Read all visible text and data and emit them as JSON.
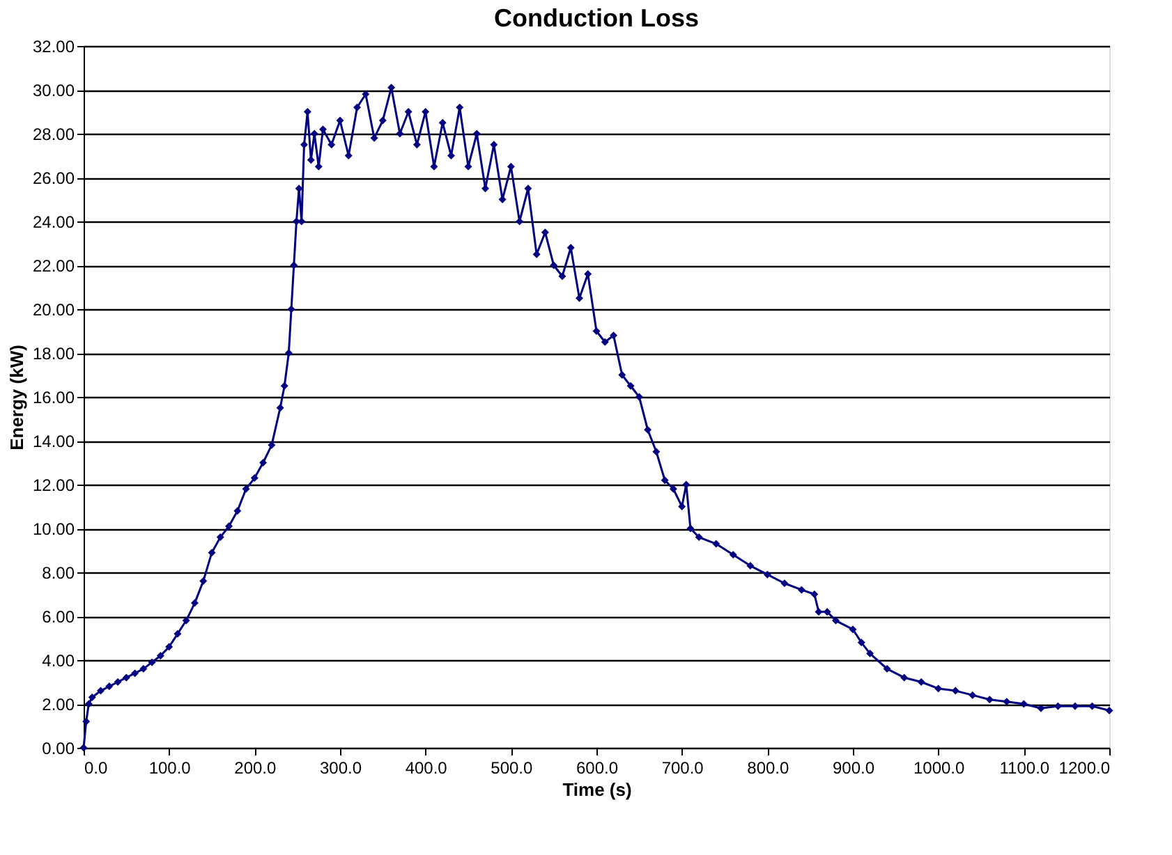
{
  "chart_data": {
    "type": "line",
    "title": "Conduction Loss",
    "xlabel": "Time (s)",
    "ylabel": "Energy (kW)",
    "series": [
      {
        "color": "#000080",
        "x": [
          0,
          3,
          6,
          10,
          20,
          30,
          40,
          50,
          60,
          70,
          80,
          90,
          100,
          110,
          120,
          130,
          140,
          150,
          160,
          170,
          180,
          190,
          200,
          210,
          220,
          230,
          235,
          240,
          243,
          246,
          249,
          252,
          255,
          258,
          262,
          266,
          270,
          275,
          280,
          290,
          300,
          310,
          320,
          330,
          340,
          350,
          360,
          370,
          380,
          390,
          400,
          410,
          420,
          430,
          440,
          450,
          460,
          470,
          480,
          490,
          500,
          510,
          520,
          530,
          540,
          550,
          560,
          570,
          580,
          590,
          600,
          610,
          620,
          630,
          640,
          650,
          660,
          670,
          680,
          690,
          700,
          705,
          710,
          720,
          740,
          760,
          780,
          800,
          820,
          840,
          855,
          860,
          870,
          880,
          900,
          910,
          920,
          940,
          960,
          980,
          1000,
          1020,
          1040,
          1060,
          1080,
          1100,
          1120,
          1140,
          1160,
          1180,
          1200
        ],
        "values": [
          0,
          1.2,
          2.0,
          2.3,
          2.6,
          2.8,
          3.0,
          3.2,
          3.4,
          3.6,
          3.9,
          4.2,
          4.6,
          5.2,
          5.8,
          6.6,
          7.6,
          8.9,
          9.6,
          10.1,
          10.8,
          11.8,
          12.3,
          13.0,
          13.8,
          15.5,
          16.5,
          18.0,
          20.0,
          22.0,
          24.0,
          25.5,
          24.0,
          27.5,
          29.0,
          26.8,
          28.0,
          26.5,
          28.2,
          27.5,
          28.6,
          27.0,
          29.2,
          29.8,
          27.8,
          28.6,
          30.1,
          28.0,
          29.0,
          27.5,
          29.0,
          26.5,
          28.5,
          27.0,
          29.2,
          26.5,
          28.0,
          25.5,
          27.5,
          25.0,
          26.5,
          24.0,
          25.5,
          22.5,
          23.5,
          22.0,
          21.5,
          22.8,
          20.5,
          21.6,
          19.0,
          18.5,
          18.8,
          17.0,
          16.5,
          16.0,
          14.5,
          13.5,
          12.2,
          11.8,
          11.0,
          12.0,
          10.0,
          9.6,
          9.3,
          8.8,
          8.3,
          7.9,
          7.5,
          7.2,
          7.0,
          6.2,
          6.2,
          5.8,
          5.4,
          4.8,
          4.3,
          3.6,
          3.2,
          3.0,
          2.7,
          2.6,
          2.4,
          2.2,
          2.1,
          2.0,
          1.8,
          1.9,
          1.9,
          1.9,
          1.7
        ]
      }
    ],
    "xlim": [
      0,
      1200
    ],
    "xticks": [
      {
        "value": 0,
        "label": "0.0"
      },
      {
        "value": 100,
        "label": "100.0"
      },
      {
        "value": 200,
        "label": "200.0"
      },
      {
        "value": 300,
        "label": "300.0"
      },
      {
        "value": 400,
        "label": "400.0"
      },
      {
        "value": 500,
        "label": "500.0"
      },
      {
        "value": 600,
        "label": "600.0"
      },
      {
        "value": 700,
        "label": "700.0"
      },
      {
        "value": 800,
        "label": "800.0"
      },
      {
        "value": 900,
        "label": "900.0"
      },
      {
        "value": 1000,
        "label": "1000.0"
      },
      {
        "value": 1100,
        "label": "1100.0"
      },
      {
        "value": 1200,
        "label": "1200.0"
      }
    ],
    "ylim": [
      0,
      32
    ],
    "yticks": [
      {
        "value": 0,
        "label": "0.00"
      },
      {
        "value": 2,
        "label": "2.00"
      },
      {
        "value": 4,
        "label": "4.00"
      },
      {
        "value": 6,
        "label": "6.00"
      },
      {
        "value": 8,
        "label": "8.00"
      },
      {
        "value": 10,
        "label": "10.00"
      },
      {
        "value": 12,
        "label": "12.00"
      },
      {
        "value": 14,
        "label": "14.00"
      },
      {
        "value": 16,
        "label": "16.00"
      },
      {
        "value": 18,
        "label": "18.00"
      },
      {
        "value": 20,
        "label": "20.00"
      },
      {
        "value": 22,
        "label": "22.00"
      },
      {
        "value": 24,
        "label": "24.00"
      },
      {
        "value": 26,
        "label": "26.00"
      },
      {
        "value": 28,
        "label": "28.00"
      },
      {
        "value": 30,
        "label": "30.00"
      },
      {
        "value": 32,
        "label": "32.00"
      }
    ],
    "grid": "y",
    "marker": "diamond",
    "line_style": "solid"
  }
}
